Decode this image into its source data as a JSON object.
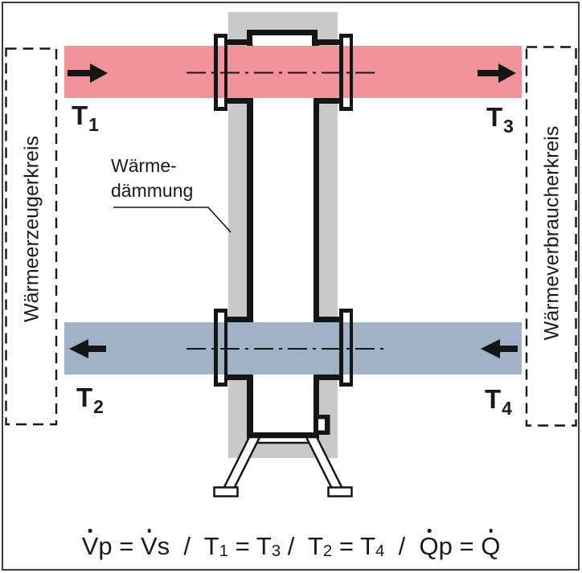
{
  "colors": {
    "hot": "#F2929B",
    "cold": "#9FB2C6",
    "insulation": "#C9C9CC",
    "line": "#151515",
    "frame": "#3E3E3E"
  },
  "zones": {
    "left": {
      "label": "Wärmeerzeugerkreis"
    },
    "right": {
      "label": "Wärmeverbraucherkreis"
    }
  },
  "insulation_label": {
    "line1": "Wärme-",
    "line2": "dämmung"
  },
  "temps": {
    "t1": {
      "letter": "T",
      "sub": "1"
    },
    "t2": {
      "letter": "T",
      "sub": "2"
    },
    "t3": {
      "letter": "T",
      "sub": "3"
    },
    "t4": {
      "letter": "T",
      "sub": "4"
    }
  },
  "flows": {
    "hot_direction": "right",
    "cold_direction": "left"
  },
  "formula": {
    "tokens": [
      {
        "t": "V",
        "dot": true
      },
      {
        "t": "p"
      },
      {
        "t": " = "
      },
      {
        "t": "V",
        "dot": true
      },
      {
        "t": "s"
      },
      {
        "t": "  /  "
      },
      {
        "t": "T"
      },
      {
        "t": "1",
        "sub": true
      },
      {
        "t": " = "
      },
      {
        "t": "T"
      },
      {
        "t": "3",
        "sub": true
      },
      {
        "t": " /  "
      },
      {
        "t": "T"
      },
      {
        "t": "2",
        "sub": true
      },
      {
        "t": " = "
      },
      {
        "t": "T"
      },
      {
        "t": "4",
        "sub": true
      },
      {
        "t": "  /  "
      },
      {
        "t": "Q",
        "dot": true
      },
      {
        "t": "p"
      },
      {
        "t": " = "
      },
      {
        "t": "Q",
        "dot": true
      }
    ]
  }
}
